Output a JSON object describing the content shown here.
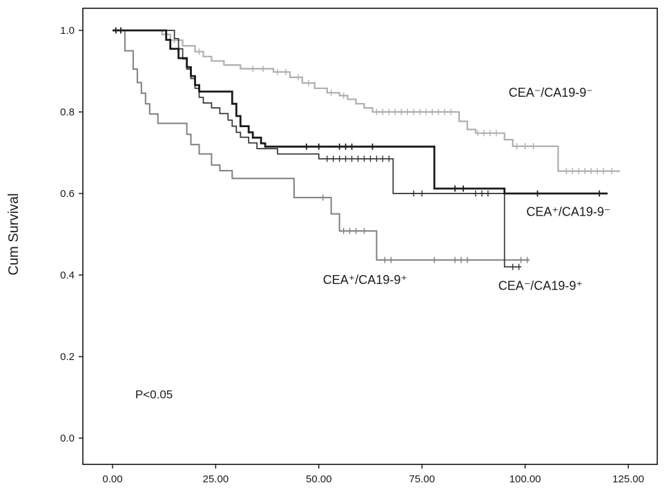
{
  "chart_data": {
    "type": "line",
    "subtype": "kaplan-meier-step",
    "title": "",
    "xlabel": "",
    "ylabel": "Cum Survival",
    "xlim": [
      0,
      125
    ],
    "ylim": [
      0.0,
      1.0
    ],
    "grid": false,
    "legend_position": "inline-annotations",
    "p_value_text": "P<0.05",
    "x_ticks": [
      {
        "value": 0,
        "label": "0.00"
      },
      {
        "value": 25,
        "label": "25.00"
      },
      {
        "value": 50,
        "label": "50.00"
      },
      {
        "value": 75,
        "label": "75.00"
      },
      {
        "value": 100,
        "label": "100.00"
      },
      {
        "value": 125,
        "label": "125.00"
      }
    ],
    "y_ticks": [
      {
        "value": 0.0,
        "label": "0.0"
      },
      {
        "value": 0.2,
        "label": "0.2"
      },
      {
        "value": 0.4,
        "label": "0.4"
      },
      {
        "value": 0.6,
        "label": "0.6"
      },
      {
        "value": 0.8,
        "label": "0.8"
      },
      {
        "value": 1.0,
        "label": "1.0"
      }
    ],
    "annotations": [
      {
        "id": "label-cea-neg-ca19-neg",
        "text": "CEA⁻/CA19-9⁻",
        "x": 96,
        "y": 0.845,
        "font_size": 18
      },
      {
        "id": "label-cea-pos-ca19-neg",
        "text": "CEA⁺/CA19-9⁻",
        "x": 100.3,
        "y": 0.553,
        "font_size": 18
      },
      {
        "id": "label-cea-pos-ca19-pos",
        "text": "CEA⁺/CA19-9⁺",
        "x": 51,
        "y": 0.386,
        "font_size": 18
      },
      {
        "id": "label-cea-neg-ca19-pos",
        "text": "CEA⁻/CA19-9⁺",
        "x": 93.5,
        "y": 0.372,
        "font_size": 18
      },
      {
        "id": "p-value-label",
        "text": "P<0.05",
        "x": 5.5,
        "y": 0.105,
        "font_size": 17
      }
    ],
    "series": [
      {
        "name": "CEA⁻/CA19-9⁻",
        "color": "#aeaeae",
        "width": 2.2,
        "steps": [
          [
            0,
            1.0
          ],
          [
            12,
            0.99
          ],
          [
            14,
            0.976
          ],
          [
            17,
            0.962
          ],
          [
            20,
            0.948
          ],
          [
            22,
            0.936
          ],
          [
            24,
            0.925
          ],
          [
            27,
            0.915
          ],
          [
            31,
            0.906
          ],
          [
            39,
            0.898
          ],
          [
            43,
            0.885
          ],
          [
            46,
            0.871
          ],
          [
            49,
            0.858
          ],
          [
            52,
            0.847
          ],
          [
            55,
            0.84
          ],
          [
            57,
            0.831
          ],
          [
            59,
            0.82
          ],
          [
            61,
            0.81
          ],
          [
            63,
            0.8
          ],
          [
            84,
            0.777
          ],
          [
            86,
            0.757
          ],
          [
            88,
            0.748
          ],
          [
            95,
            0.732
          ],
          [
            97,
            0.716
          ],
          [
            108,
            0.655
          ],
          [
            123,
            0.655
          ]
        ],
        "censors": [
          [
            15,
            0.976
          ],
          [
            21,
            0.948
          ],
          [
            34,
            0.906
          ],
          [
            36.5,
            0.906
          ],
          [
            40,
            0.898
          ],
          [
            42,
            0.898
          ],
          [
            45,
            0.885
          ],
          [
            47.5,
            0.871
          ],
          [
            53,
            0.847
          ],
          [
            56,
            0.84
          ],
          [
            64,
            0.8
          ],
          [
            65.5,
            0.8
          ],
          [
            67,
            0.8
          ],
          [
            68.5,
            0.8
          ],
          [
            70,
            0.8
          ],
          [
            71.5,
            0.8
          ],
          [
            73,
            0.8
          ],
          [
            74.5,
            0.8
          ],
          [
            76,
            0.8
          ],
          [
            77.5,
            0.8
          ],
          [
            79,
            0.8
          ],
          [
            80.5,
            0.8
          ],
          [
            82,
            0.8
          ],
          [
            88.5,
            0.748
          ],
          [
            90,
            0.748
          ],
          [
            91.5,
            0.748
          ],
          [
            93,
            0.748
          ],
          [
            98,
            0.716
          ],
          [
            100,
            0.716
          ],
          [
            102,
            0.716
          ],
          [
            110,
            0.655
          ],
          [
            111.5,
            0.655
          ],
          [
            113,
            0.655
          ],
          [
            114.5,
            0.655
          ],
          [
            116,
            0.655
          ],
          [
            117.5,
            0.655
          ],
          [
            119,
            0.655
          ],
          [
            121,
            0.655
          ]
        ]
      },
      {
        "name": "CEA⁺/CA19-9⁺",
        "color": "#7f7f7f",
        "width": 2.0,
        "steps": [
          [
            0,
            1.0
          ],
          [
            3,
            0.95
          ],
          [
            5,
            0.905
          ],
          [
            6,
            0.872
          ],
          [
            7,
            0.846
          ],
          [
            8,
            0.82
          ],
          [
            9,
            0.795
          ],
          [
            11,
            0.772
          ],
          [
            18,
            0.745
          ],
          [
            19,
            0.72
          ],
          [
            21,
            0.697
          ],
          [
            24,
            0.67
          ],
          [
            26,
            0.656
          ],
          [
            29,
            0.637
          ],
          [
            44,
            0.59
          ],
          [
            53,
            0.55
          ],
          [
            55,
            0.508
          ],
          [
            64,
            0.437
          ],
          [
            101,
            0.437
          ]
        ],
        "censors": [
          [
            51,
            0.59
          ],
          [
            56,
            0.508
          ],
          [
            57.5,
            0.508
          ],
          [
            59,
            0.508
          ],
          [
            61,
            0.508
          ],
          [
            66,
            0.437
          ],
          [
            67.5,
            0.437
          ],
          [
            78,
            0.437
          ],
          [
            83,
            0.437
          ],
          [
            84.5,
            0.437
          ],
          [
            86,
            0.437
          ],
          [
            99,
            0.437
          ],
          [
            100.5,
            0.437
          ]
        ]
      },
      {
        "name": "CEA⁻/CA19-9⁺",
        "color": "#333333",
        "width": 1.7,
        "steps": [
          [
            0,
            1.0
          ],
          [
            15,
            0.98
          ],
          [
            16,
            0.955
          ],
          [
            17,
            0.93
          ],
          [
            18,
            0.905
          ],
          [
            19,
            0.882
          ],
          [
            20,
            0.858
          ],
          [
            21,
            0.836
          ],
          [
            22,
            0.822
          ],
          [
            24,
            0.81
          ],
          [
            26,
            0.796
          ],
          [
            28,
            0.78
          ],
          [
            29,
            0.765
          ],
          [
            30,
            0.75
          ],
          [
            31,
            0.738
          ],
          [
            33,
            0.724
          ],
          [
            35,
            0.71
          ],
          [
            40,
            0.697
          ],
          [
            50,
            0.685
          ],
          [
            68,
            0.6
          ],
          [
            95,
            0.42
          ],
          [
            99,
            0.42
          ]
        ],
        "censors": [
          [
            52,
            0.685
          ],
          [
            53.5,
            0.685
          ],
          [
            55,
            0.685
          ],
          [
            56.5,
            0.685
          ],
          [
            58,
            0.685
          ],
          [
            59.5,
            0.685
          ],
          [
            61,
            0.685
          ],
          [
            62.5,
            0.685
          ],
          [
            64,
            0.685
          ],
          [
            65.5,
            0.685
          ],
          [
            67,
            0.685
          ],
          [
            73,
            0.6
          ],
          [
            75,
            0.6
          ],
          [
            88,
            0.6
          ],
          [
            89.5,
            0.6
          ],
          [
            91,
            0.6
          ],
          [
            97,
            0.42
          ],
          [
            98.5,
            0.42
          ]
        ]
      },
      {
        "name": "CEA⁺/CA19-9⁻",
        "color": "#1a1a1a",
        "width": 2.8,
        "steps": [
          [
            0,
            1.0
          ],
          [
            13,
            0.977
          ],
          [
            14,
            0.955
          ],
          [
            16,
            0.932
          ],
          [
            18,
            0.91
          ],
          [
            19,
            0.888
          ],
          [
            20,
            0.866
          ],
          [
            21,
            0.85
          ],
          [
            29,
            0.82
          ],
          [
            30,
            0.79
          ],
          [
            31,
            0.765
          ],
          [
            33,
            0.75
          ],
          [
            34,
            0.737
          ],
          [
            36,
            0.723
          ],
          [
            37,
            0.715
          ],
          [
            78,
            0.612
          ],
          [
            95,
            0.6
          ],
          [
            120,
            0.6
          ]
        ],
        "censors": [
          [
            0.8,
            1.0
          ],
          [
            2,
            1.0
          ],
          [
            47,
            0.715
          ],
          [
            50,
            0.715
          ],
          [
            55,
            0.715
          ],
          [
            56.5,
            0.715
          ],
          [
            58,
            0.715
          ],
          [
            63,
            0.715
          ],
          [
            83,
            0.612
          ],
          [
            85,
            0.612
          ],
          [
            103,
            0.6
          ],
          [
            118,
            0.6
          ]
        ]
      }
    ]
  }
}
